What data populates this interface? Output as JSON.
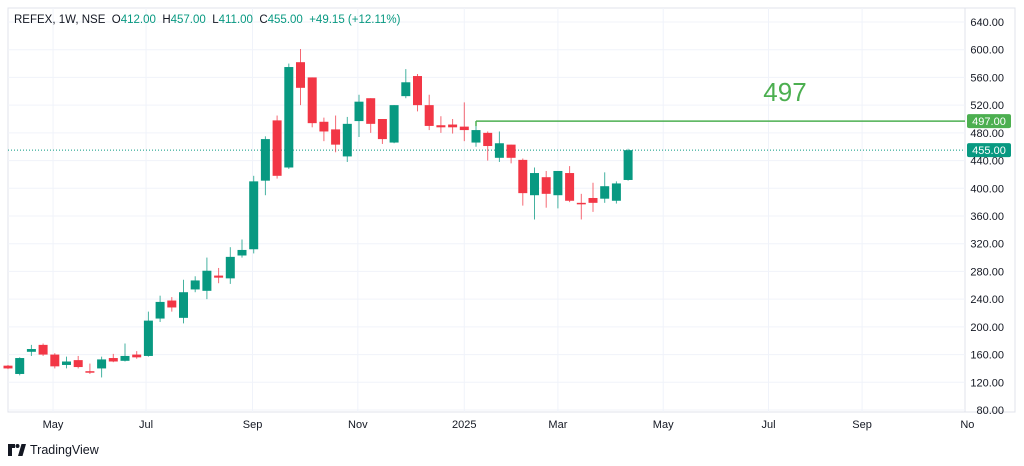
{
  "header": {
    "symbol": "REFEX, 1W, NSE",
    "open_label": "O",
    "open": "412.00",
    "high_label": "H",
    "high": "457.00",
    "low_label": "L",
    "low": "411.00",
    "close_label": "C",
    "close": "455.00",
    "change": "+49.15 (+12.11%)"
  },
  "brand": {
    "name": "TradingView"
  },
  "colors": {
    "up": "#089981",
    "down": "#f23645",
    "level": "#4caf50",
    "grid": "#f0f3fa",
    "text": "#131722"
  },
  "chart_data": {
    "type": "candlestick",
    "title": "REFEX, 1W, NSE",
    "interval": "1W",
    "ylim": [
      80,
      640
    ],
    "y_ticks": [
      80,
      120,
      160,
      200,
      240,
      280,
      320,
      360,
      400,
      440,
      480,
      520,
      560,
      600,
      640
    ],
    "y_tick_labels": [
      "80.00",
      "120.00",
      "160.00",
      "200.00",
      "240.00",
      "280.00",
      "320.00",
      "360.00",
      "400.00",
      "440.00",
      "480.00",
      "520.00",
      "560.00",
      "600.00",
      "640.00"
    ],
    "x_ticks": [
      {
        "label": "May",
        "index": 3.85
      },
      {
        "label": "Jul",
        "index": 11.8
      },
      {
        "label": "Sep",
        "index": 20.9
      },
      {
        "label": "Nov",
        "index": 29.9
      },
      {
        "label": "2025",
        "index": 39
      },
      {
        "label": "Mar",
        "index": 47
      },
      {
        "label": "May",
        "index": 56
      },
      {
        "label": "Jul",
        "index": 65
      },
      {
        "label": "Sep",
        "index": 73
      },
      {
        "label": "No",
        "index": 82
      }
    ],
    "xlim": [
      0,
      82.3
    ],
    "candles": [
      [
        144,
        145,
        139,
        140
      ],
      [
        132,
        156,
        130,
        155
      ],
      [
        164,
        174,
        158,
        168
      ],
      [
        174,
        176,
        158,
        160
      ],
      [
        160,
        162,
        140,
        143
      ],
      [
        145,
        157,
        140,
        150
      ],
      [
        152,
        158,
        140,
        142
      ],
      [
        136,
        147,
        132,
        134
      ],
      [
        140,
        157,
        127,
        153
      ],
      [
        155,
        161,
        149,
        150
      ],
      [
        151,
        176,
        150,
        158
      ],
      [
        160,
        165,
        154,
        156
      ],
      [
        158,
        222,
        157,
        209
      ],
      [
        212,
        245,
        207,
        236
      ],
      [
        238,
        243,
        222,
        228
      ],
      [
        213,
        268,
        205,
        250
      ],
      [
        254,
        273,
        250,
        267
      ],
      [
        252,
        300,
        240,
        281
      ],
      [
        274,
        285,
        263,
        271
      ],
      [
        270,
        315,
        262,
        301
      ],
      [
        303,
        326,
        300,
        311
      ],
      [
        312,
        418,
        306,
        410
      ],
      [
        411,
        475,
        390,
        471
      ],
      [
        498,
        505,
        414,
        418
      ],
      [
        430,
        580,
        428,
        575
      ],
      [
        582,
        601,
        520,
        545
      ],
      [
        560,
        560,
        488,
        494
      ],
      [
        496,
        502,
        468,
        482
      ],
      [
        485,
        505,
        452,
        463
      ],
      [
        446,
        503,
        438,
        493
      ],
      [
        497,
        535,
        474,
        525
      ],
      [
        530,
        530,
        480,
        493
      ],
      [
        500,
        500,
        464,
        471
      ],
      [
        466,
        520,
        465,
        520
      ],
      [
        533,
        572,
        530,
        553
      ],
      [
        562,
        565,
        511,
        520
      ],
      [
        520,
        535,
        484,
        490
      ],
      [
        491,
        504,
        480,
        488
      ],
      [
        492,
        500,
        479,
        488
      ],
      [
        489,
        524,
        468,
        484
      ],
      [
        466,
        497,
        460,
        484
      ],
      [
        480,
        482,
        440,
        461
      ],
      [
        444,
        482,
        438,
        465
      ],
      [
        463,
        463,
        436,
        444
      ],
      [
        441,
        443,
        375,
        393
      ],
      [
        390,
        430,
        355,
        422
      ],
      [
        416,
        425,
        372,
        392
      ],
      [
        390,
        425,
        371,
        425
      ],
      [
        422,
        432,
        380,
        382
      ],
      [
        379,
        392,
        355,
        378
      ],
      [
        386,
        408,
        366,
        379
      ],
      [
        385,
        423,
        379,
        403
      ],
      [
        382,
        410,
        378,
        407
      ],
      [
        412,
        457,
        411,
        455
      ]
    ],
    "candle_format": [
      "open",
      "high",
      "low",
      "close"
    ],
    "level_line": {
      "value": 497,
      "start_index": 40,
      "label": "497",
      "axis_label": "497.00"
    },
    "last_price": {
      "value": 455,
      "axis_label": "455.00"
    }
  }
}
